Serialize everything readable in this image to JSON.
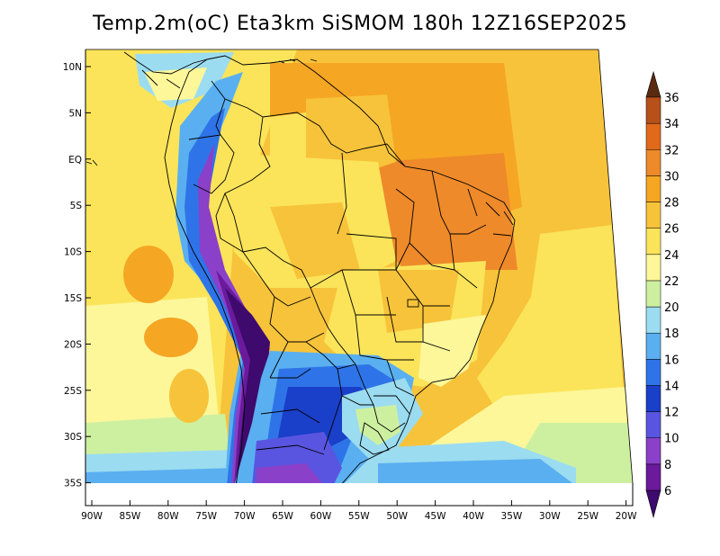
{
  "title": "Temp.2m(oC) Eta3km SiSMOM 180h 12Z16SEP2025",
  "colors": {
    "background": "#ffffff",
    "c26_28": "#f7c33a",
    "c28_30": "#f5a623",
    "c30_32": "#ee8a2a",
    "c24_26": "#fbe45a",
    "c22_24": "#fdf79a",
    "c20_22": "#cdf0a0",
    "c18_20": "#9bdcf0",
    "c16_18": "#5aaff0",
    "c14_16": "#2e74e8",
    "c12_14": "#1a3fc8",
    "c10_12": "#5a55e0",
    "c8_10": "#8a40c8",
    "c6_8": "#6a1a9a",
    "below6": "#3e0a6e",
    "above36": "#5a2a10",
    "boundary": "#000000"
  },
  "lat_labels": [
    "10N",
    "5N",
    "EQ",
    "5S",
    "10S",
    "15S",
    "20S",
    "25S",
    "30S",
    "35S"
  ],
  "lon_labels": [
    "90W",
    "85W",
    "80W",
    "75W",
    "70W",
    "65W",
    "60W",
    "55W",
    "50W",
    "45W",
    "40W",
    "35W",
    "30W",
    "25W",
    "20W"
  ],
  "colorbar": {
    "labels": [
      "6",
      "8",
      "10",
      "12",
      "14",
      "16",
      "18",
      "20",
      "22",
      "24",
      "26",
      "28",
      "30",
      "32",
      "34",
      "36"
    ],
    "colors": [
      "#6a1a9a",
      "#8a40c8",
      "#5a55e0",
      "#1a3fc8",
      "#2e74e8",
      "#5aaff0",
      "#9bdcf0",
      "#cdf0a0",
      "#fdf79a",
      "#fbe45a",
      "#f7c33a",
      "#f5a623",
      "#ee8a2a",
      "#e06a1a",
      "#b8501a"
    ],
    "below_color": "#3e0a6e",
    "above_color": "#5a2a10"
  }
}
